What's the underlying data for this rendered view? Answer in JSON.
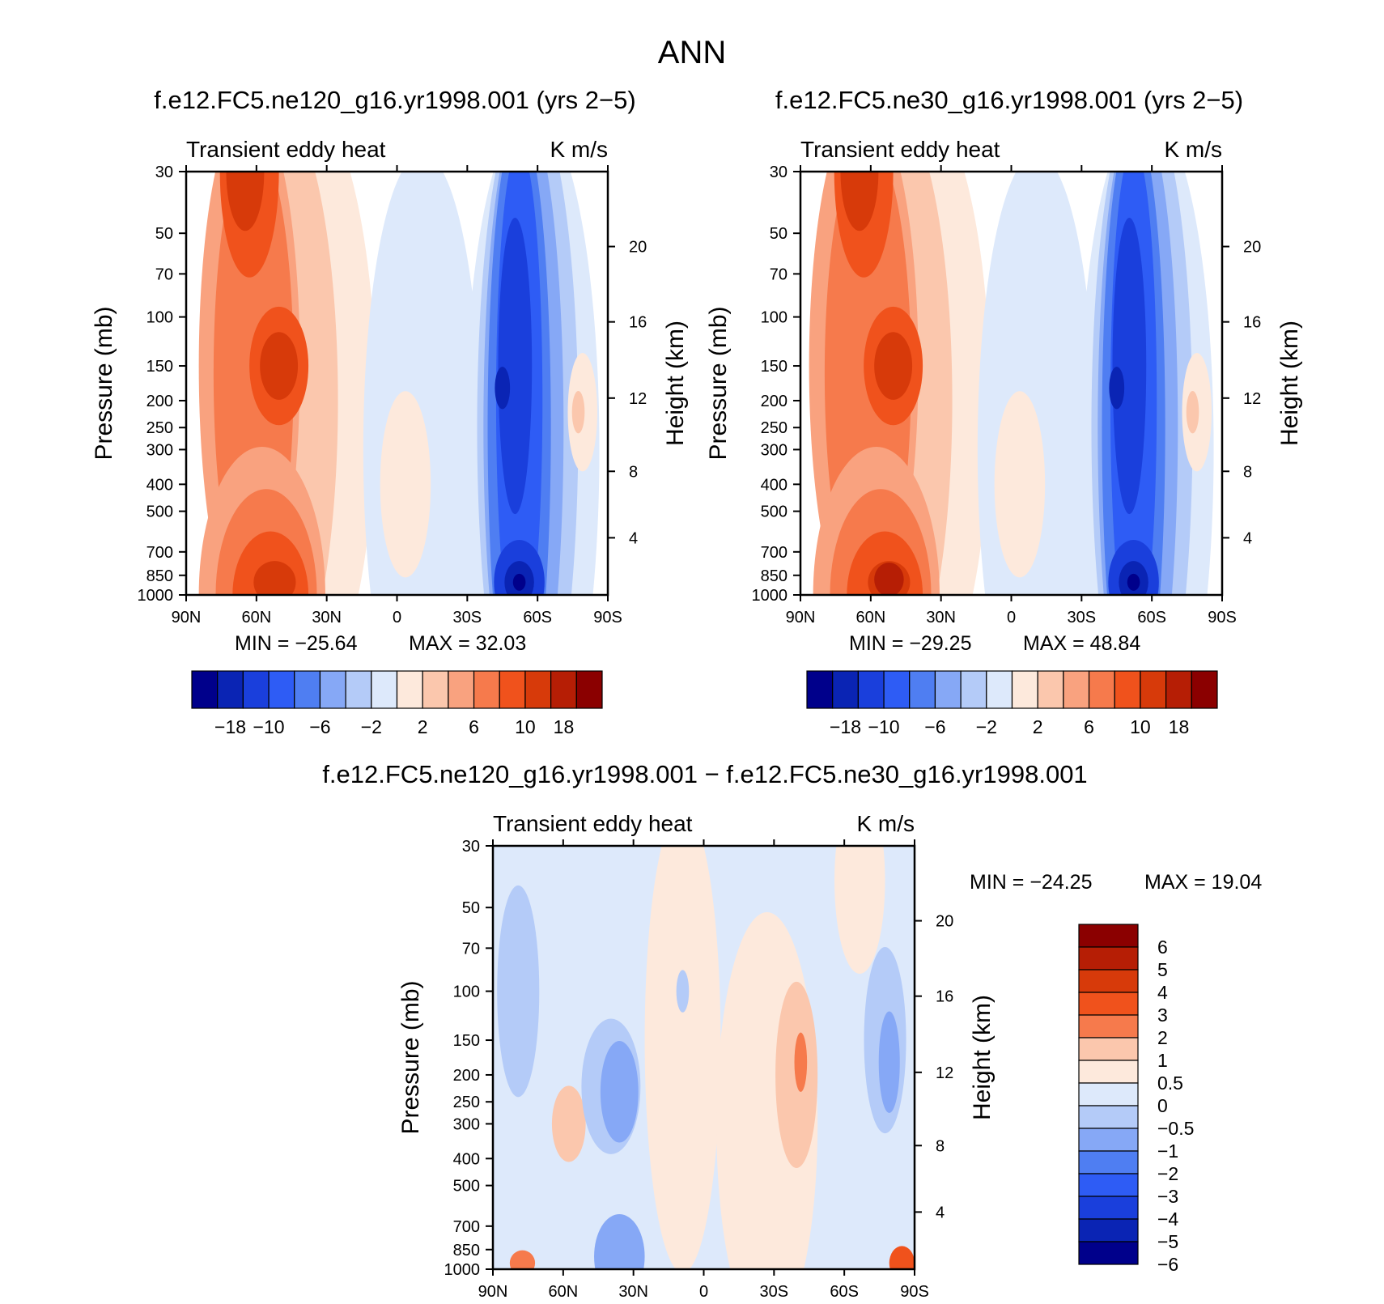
{
  "figure_title": "ANN",
  "colors": {
    "panel_scale": [
      "#00008b",
      "#0a24b4",
      "#1a3fdc",
      "#2e5cf5",
      "#4f7ef2",
      "#86a8f6",
      "#b4cbf8",
      "#dde9fb",
      "#fde9dc",
      "#fbc7ad",
      "#f9a27f",
      "#f67a4c",
      "#f0521c",
      "#d73a0a",
      "#b61e05",
      "#8b0000"
    ],
    "diff_scale": [
      "#00008b",
      "#0a24b4",
      "#1a3fdc",
      "#2e5cf5",
      "#4f7ef2",
      "#86a8f6",
      "#b4cbf8",
      "#dde9fb",
      "#fde9dc",
      "#fbc7ad",
      "#f67a4c",
      "#f0521c",
      "#d73a0a",
      "#b61e05",
      "#8b0000"
    ]
  },
  "chart_data": [
    {
      "type": "contour",
      "title": "f.e12.FC5.ne120_g16.yr1998.001 (yrs 2−5)",
      "left_label": "Transient eddy heat",
      "right_label": "K m/s",
      "ylabel": "Pressure (mb)",
      "y2label": "Height (km)",
      "xticks": [
        "90N",
        "60N",
        "30N",
        "0",
        "30S",
        "60S",
        "90S"
      ],
      "yticks": [
        "30",
        "50",
        "70",
        "100",
        "150",
        "200",
        "250",
        "300",
        "400",
        "500",
        "700",
        "850",
        "1000"
      ],
      "y2ticks": [
        "20",
        "16",
        "12",
        "8",
        "4"
      ],
      "min_label": "MIN = −25.64",
      "max_label": "MAX = 32.03",
      "min": -25.64,
      "max": 32.03,
      "colorbar_labels": [
        "−18",
        "−10",
        "−6",
        "−2",
        "2",
        "6",
        "10",
        "18"
      ]
    },
    {
      "type": "contour",
      "title": "f.e12.FC5.ne30_g16.yr1998.001 (yrs 2−5)",
      "left_label": "Transient eddy heat",
      "right_label": "K m/s",
      "ylabel": "Pressure (mb)",
      "y2label": "Height (km)",
      "xticks": [
        "90N",
        "60N",
        "30N",
        "0",
        "30S",
        "60S",
        "90S"
      ],
      "yticks": [
        "30",
        "50",
        "70",
        "100",
        "150",
        "200",
        "250",
        "300",
        "400",
        "500",
        "700",
        "850",
        "1000"
      ],
      "y2ticks": [
        "20",
        "16",
        "12",
        "8",
        "4"
      ],
      "min_label": "MIN = −29.25",
      "max_label": "MAX = 48.84",
      "min": -29.25,
      "max": 48.84,
      "colorbar_labels": [
        "−18",
        "−10",
        "−6",
        "−2",
        "2",
        "6",
        "10",
        "18"
      ]
    },
    {
      "type": "contour",
      "title": "f.e12.FC5.ne120_g16.yr1998.001 − f.e12.FC5.ne30_g16.yr1998.001",
      "left_label": "Transient eddy heat",
      "right_label": "K m/s",
      "ylabel": "Pressure (mb)",
      "y2label": "Height (km)",
      "xticks": [
        "90N",
        "60N",
        "30N",
        "0",
        "30S",
        "60S",
        "90S"
      ],
      "yticks": [
        "30",
        "50",
        "70",
        "100",
        "150",
        "200",
        "250",
        "300",
        "400",
        "500",
        "700",
        "850",
        "1000"
      ],
      "y2ticks": [
        "20",
        "16",
        "12",
        "8",
        "4"
      ],
      "min_label": "MIN = −24.25",
      "max_label": "MAX = 19.04",
      "min": -24.25,
      "max": 19.04,
      "colorbar_labels": [
        "6",
        "5",
        "4",
        "3",
        "2",
        "1",
        "0.5",
        "0",
        "−0.5",
        "−1",
        "−2",
        "−3",
        "−4",
        "−5",
        "−6"
      ]
    }
  ]
}
